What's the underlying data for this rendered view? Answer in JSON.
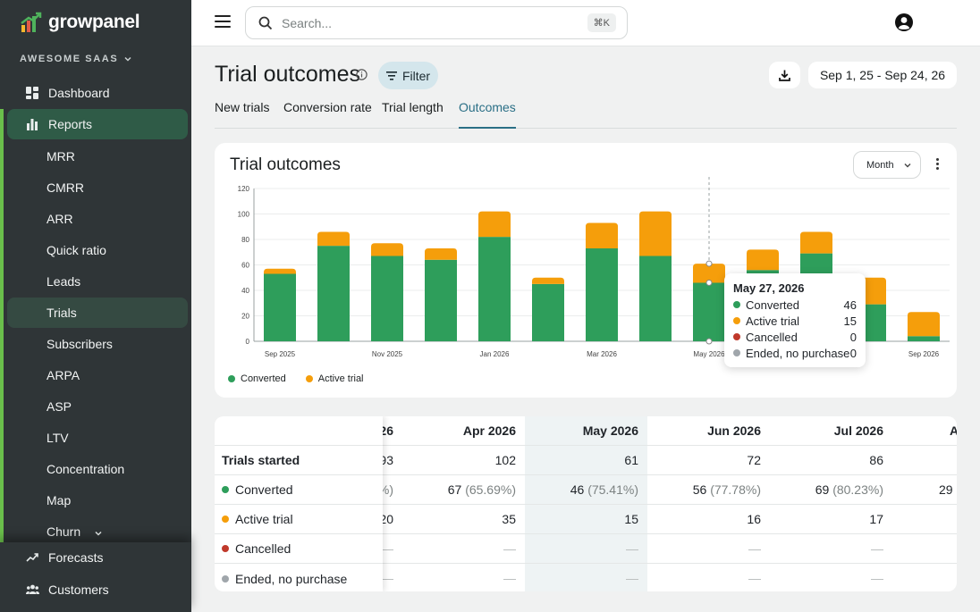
{
  "brand": {
    "name": "growpanel",
    "workspace": "AWESOME SAAS"
  },
  "sidebar": {
    "items": [
      {
        "label": "Dashboard",
        "icon": "dashboard-icon"
      },
      {
        "label": "Reports",
        "icon": "bar-chart-icon"
      }
    ],
    "sub_items": [
      "MRR",
      "CMRR",
      "ARR",
      "Quick ratio",
      "Leads",
      "Trials",
      "Subscribers",
      "ARPA",
      "ASP",
      "LTV",
      "Concentration",
      "Map",
      "Churn"
    ],
    "bottom_items": [
      {
        "label": "Forecasts",
        "icon": "trend-icon"
      },
      {
        "label": "Customers",
        "icon": "users-icon"
      }
    ]
  },
  "topbar": {
    "search_placeholder": "Search...",
    "shortcut": "⌘K"
  },
  "page": {
    "title": "Trial outcomes",
    "filter_label": "Filter",
    "date_range": "Sep 1, 25 - Sep 24, 26",
    "tabs": [
      "New trials",
      "Conversion rate",
      "Trial length",
      "Outcomes"
    ],
    "active_tab": "Outcomes"
  },
  "card": {
    "title": "Trial outcomes",
    "interval": "Month"
  },
  "colors": {
    "converted": "#2e9e5b",
    "active_trial": "#f59e0b",
    "cancelled": "#c0392b",
    "ended": "#a0a6ab",
    "accent": "#2a6f86"
  },
  "chart_data": {
    "type": "bar",
    "stacked": true,
    "categories": [
      "Sep 2025",
      "Oct 2025",
      "Nov 2025",
      "Dec 2025",
      "Jan 2026",
      "Feb 2026",
      "Mar 2026",
      "Apr 2026",
      "May 2026",
      "Jun 2026",
      "Jul 2026",
      "Aug 2026",
      "Sep 2026"
    ],
    "tick_labels": [
      "Sep 2025",
      "Nov 2025",
      "Jan 2026",
      "Mar 2026",
      "May 2026",
      "Jul 2026",
      "Sep 2026"
    ],
    "series": [
      {
        "name": "Converted",
        "values": [
          53,
          75,
          67,
          64,
          82,
          45,
          73,
          67,
          46,
          56,
          69,
          29,
          4
        ]
      },
      {
        "name": "Active trial",
        "values": [
          4,
          11,
          10,
          9,
          20,
          5,
          20,
          35,
          15,
          16,
          17,
          21,
          19
        ]
      }
    ],
    "ylim": [
      0,
      120
    ],
    "yticks": [
      0,
      20,
      40,
      60,
      80,
      100,
      120
    ],
    "grid": true,
    "legend": "bottom-left",
    "hover_index": 8
  },
  "tooltip": {
    "title": "May 27, 2026",
    "rows": [
      {
        "label": "Converted",
        "value": "46"
      },
      {
        "label": "Active trial",
        "value": "15"
      },
      {
        "label": "Cancelled",
        "value": "0"
      },
      {
        "label": "Ended, no purchase",
        "value": "0"
      }
    ]
  },
  "table": {
    "row_labels": [
      "Trials started",
      "Converted",
      "Active trial",
      "Cancelled",
      "Ended, no purchase"
    ],
    "columns": [
      {
        "header": "26",
        "started": "93",
        "converted": "",
        "converted_pct": "%)",
        "active": "20",
        "cancelled": "—",
        "ended": "—"
      },
      {
        "header": "Apr 2026",
        "started": "102",
        "converted": "67",
        "converted_pct": "(65.69%)",
        "active": "35",
        "cancelled": "—",
        "ended": "—"
      },
      {
        "header": "May 2026",
        "started": "61",
        "converted": "46",
        "converted_pct": "(75.41%)",
        "active": "15",
        "cancelled": "—",
        "ended": "—"
      },
      {
        "header": "Jun 2026",
        "started": "72",
        "converted": "56",
        "converted_pct": "(77.78%)",
        "active": "16",
        "cancelled": "—",
        "ended": "—"
      },
      {
        "header": "Jul 2026",
        "started": "86",
        "converted": "69",
        "converted_pct": "(80.23%)",
        "active": "17",
        "cancelled": "—",
        "ended": "—"
      },
      {
        "header": "A",
        "started": "",
        "converted": "29",
        "converted_pct": "",
        "active": "",
        "cancelled": "",
        "ended": ""
      }
    ]
  }
}
